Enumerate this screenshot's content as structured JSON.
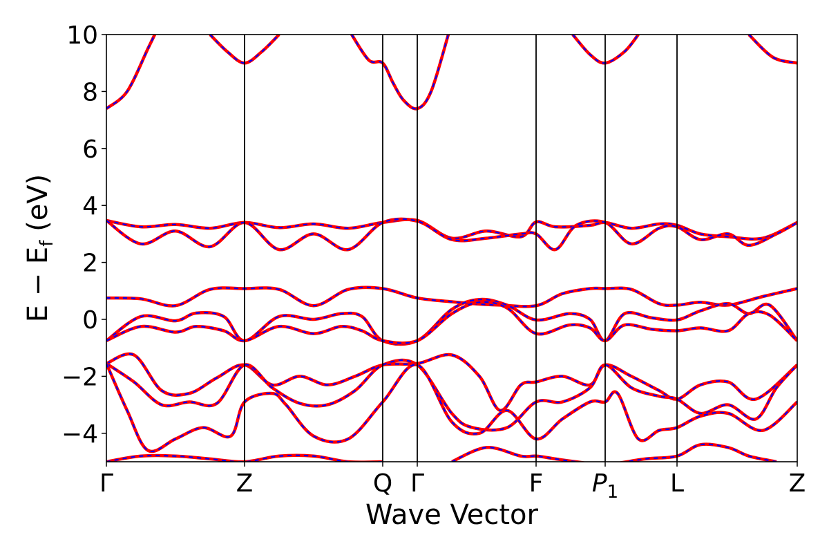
{
  "chart_data": {
    "type": "line",
    "title": "",
    "xlabel": "Wave Vector",
    "ylabel": "E − E_f (eV)",
    "ylabel_parts": {
      "main": "E − E",
      "sub": "f",
      "unit": " (eV)"
    },
    "ylim": [
      -5,
      10
    ],
    "yticks": [
      -4,
      -2,
      0,
      2,
      4,
      6,
      8,
      10
    ],
    "ytick_labels": [
      "−4",
      "−2",
      "0",
      "2",
      "4",
      "6",
      "8",
      "10"
    ],
    "grid": false,
    "legend": "none",
    "colors": {
      "solid": "#ff0000",
      "dashed": "#0000ff",
      "vline": "#000000"
    },
    "kpath": [
      {
        "label": "Γ",
        "k": 0.0
      },
      {
        "label": "Z",
        "k": 2.0
      },
      {
        "label": "Q",
        "k": 4.0
      },
      {
        "label": "Γ",
        "k": 4.5
      },
      {
        "label": "F",
        "k": 6.22
      },
      {
        "label": "P1",
        "k": 7.22,
        "italic_base": "P",
        "sub": "1"
      },
      {
        "label": "L",
        "k": 8.26
      },
      {
        "label": "Z",
        "k": 10.0
      }
    ],
    "band_style": "solid red overlaid with dashed blue (identical values)",
    "bands": [
      {
        "x": [
          0,
          0.3,
          0.6,
          0.7
        ],
        "y": [
          7.4,
          8.0,
          9.5,
          10.0
        ]
      },
      {
        "x": [
          1.5,
          1.75,
          2.0,
          2.25,
          2.5
        ],
        "y": [
          10.0,
          9.4,
          9.0,
          9.4,
          10.0
        ]
      },
      {
        "x": [
          3.55,
          3.8,
          4.0,
          4.15,
          4.3,
          4.5,
          4.7,
          4.95
        ],
        "y": [
          10.0,
          9.1,
          9.0,
          8.3,
          7.7,
          7.4,
          8.0,
          10.0
        ]
      },
      {
        "x": [
          6.75,
          7.0,
          7.22,
          7.5,
          7.7
        ],
        "y": [
          10.0,
          9.3,
          9.0,
          9.4,
          10.0
        ]
      },
      {
        "x": [
          9.3,
          9.65,
          10.0
        ],
        "y": [
          10.0,
          9.2,
          9.0
        ]
      },
      {
        "x": [
          0,
          0.5,
          1.0,
          1.5,
          2.0,
          2.5,
          3.0,
          3.5,
          4.0,
          4.5,
          5.0,
          5.5,
          6.0,
          6.22,
          6.5,
          7.0,
          7.22,
          7.6,
          8.0,
          8.26,
          8.6,
          9.0,
          9.5,
          10.0
        ],
        "y": [
          3.47,
          3.25,
          3.33,
          3.2,
          3.4,
          3.22,
          3.35,
          3.2,
          3.4,
          3.47,
          2.85,
          3.1,
          2.9,
          3.42,
          3.25,
          3.3,
          3.4,
          3.2,
          3.35,
          3.3,
          3.0,
          2.9,
          2.85,
          3.4
        ]
      },
      {
        "x": [
          0,
          0.5,
          1.0,
          1.5,
          2.0,
          2.5,
          3.0,
          3.5,
          4.0,
          4.5,
          5.0,
          5.5,
          6.0,
          6.22,
          6.5,
          6.8,
          7.22,
          7.6,
          8.0,
          8.26,
          8.6,
          9.0,
          9.3,
          9.7,
          10.0
        ],
        "y": [
          3.47,
          2.65,
          3.1,
          2.55,
          3.4,
          2.45,
          3.0,
          2.45,
          3.4,
          3.45,
          2.8,
          2.85,
          3.0,
          3.0,
          2.45,
          3.3,
          3.4,
          2.65,
          3.2,
          3.25,
          2.8,
          3.0,
          2.6,
          3.0,
          3.4
        ]
      },
      {
        "x": [
          0,
          0.5,
          1.0,
          1.5,
          2.0,
          2.5,
          3.0,
          3.5,
          4.0,
          4.5,
          5.0,
          5.3,
          5.7,
          6.22,
          6.6,
          7.0,
          7.22,
          7.6,
          8.0,
          8.26,
          8.6,
          9.0,
          9.5,
          10.0
        ],
        "y": [
          0.75,
          0.72,
          0.48,
          1.05,
          1.08,
          1.05,
          0.48,
          1.05,
          1.08,
          0.75,
          0.62,
          0.55,
          0.5,
          0.48,
          0.9,
          1.08,
          1.08,
          1.05,
          0.55,
          0.5,
          0.6,
          0.5,
          0.8,
          1.08
        ]
      },
      {
        "x": [
          0,
          0.5,
          1.0,
          1.3,
          1.7,
          2.0,
          2.5,
          3.0,
          3.4,
          3.7,
          4.0,
          4.5,
          5.0,
          5.4,
          5.8,
          6.22,
          6.7,
          7.0,
          7.22,
          7.5,
          7.9,
          8.26,
          8.6,
          9.0,
          9.3,
          9.6,
          10.0
        ],
        "y": [
          -0.75,
          0.1,
          -0.05,
          0.22,
          0.1,
          -0.75,
          0.1,
          0.0,
          0.2,
          0.1,
          -0.75,
          -0.75,
          0.35,
          0.7,
          0.5,
          -0.02,
          0.2,
          0.0,
          -0.75,
          0.2,
          0.05,
          -0.02,
          0.3,
          0.55,
          0.2,
          0.5,
          -0.75
        ]
      },
      {
        "x": [
          0,
          0.5,
          1.0,
          1.3,
          1.7,
          2.0,
          2.5,
          3.0,
          3.4,
          3.7,
          4.0,
          4.5,
          5.0,
          5.4,
          5.8,
          6.22,
          6.7,
          7.0,
          7.22,
          7.5,
          7.9,
          8.26,
          8.6,
          9.0,
          9.3,
          9.6,
          10.0
        ],
        "y": [
          -0.75,
          -0.25,
          -0.45,
          -0.25,
          -0.4,
          -0.75,
          -0.25,
          -0.5,
          -0.25,
          -0.4,
          -0.75,
          -0.75,
          0.2,
          0.6,
          0.4,
          -0.5,
          -0.2,
          -0.3,
          -0.75,
          -0.2,
          -0.35,
          -0.4,
          -0.3,
          -0.4,
          0.2,
          0.15,
          -0.75
        ]
      },
      {
        "x": [
          0,
          0.4,
          0.8,
          1.2,
          1.6,
          2.0,
          2.4,
          2.8,
          3.2,
          3.6,
          4.0,
          4.5,
          5.0,
          5.4,
          5.7,
          6.0,
          6.22,
          6.6,
          7.0,
          7.22,
          7.6,
          8.0,
          8.26,
          8.6,
          9.0,
          9.4,
          10.0
        ],
        "y": [
          -1.55,
          -1.25,
          -2.5,
          -2.6,
          -2.05,
          -1.6,
          -2.3,
          -2.0,
          -2.3,
          -2.0,
          -1.6,
          -1.55,
          -1.25,
          -2.0,
          -3.2,
          -2.3,
          -2.2,
          -2.0,
          -2.3,
          -1.6,
          -2.0,
          -2.5,
          -2.8,
          -2.3,
          -2.2,
          -2.8,
          -1.6
        ]
      },
      {
        "x": [
          0,
          0.4,
          0.8,
          1.2,
          1.6,
          2.0,
          2.4,
          2.8,
          3.2,
          3.6,
          4.0,
          4.5,
          5.0,
          5.3,
          5.8,
          6.22,
          6.6,
          7.0,
          7.22,
          7.6,
          8.0,
          8.26,
          8.6,
          9.0,
          9.4,
          9.7,
          10.0
        ],
        "y": [
          -1.55,
          -2.2,
          -3.0,
          -2.9,
          -2.95,
          -1.6,
          -2.4,
          -2.95,
          -3.0,
          -2.5,
          -1.6,
          -1.6,
          -3.3,
          -3.8,
          -3.8,
          -2.9,
          -2.9,
          -2.4,
          -1.6,
          -2.4,
          -2.7,
          -2.8,
          -3.3,
          -3.0,
          -3.5,
          -2.4,
          -1.6
        ]
      },
      {
        "x": [
          0,
          0.3,
          0.6,
          1.0,
          1.4,
          1.8,
          2.0,
          2.4,
          2.6,
          3.0,
          3.5,
          4.0,
          4.5,
          5.0,
          5.4,
          5.8,
          6.22,
          6.6,
          7.0,
          7.22,
          7.4,
          7.7,
          8.0,
          8.26,
          8.6,
          9.0,
          9.5,
          10.0
        ],
        "y": [
          -1.55,
          -3.2,
          -4.6,
          -4.2,
          -3.8,
          -4.1,
          -2.9,
          -2.6,
          -3.0,
          -4.1,
          -4.2,
          -2.9,
          -1.6,
          -3.6,
          -4.0,
          -3.2,
          -4.2,
          -3.5,
          -2.9,
          -2.9,
          -2.6,
          -4.2,
          -3.9,
          -3.8,
          -3.4,
          -3.3,
          -3.9,
          -2.9
        ]
      },
      {
        "x": [
          0,
          0.5,
          1.0,
          1.5,
          2.0,
          2.5,
          3.0,
          3.5,
          4.0
        ],
        "y": [
          -5.0,
          -4.8,
          -4.8,
          -4.9,
          -5.0,
          -4.8,
          -4.8,
          -5.0,
          -5.0
        ]
      },
      {
        "x": [
          5.0,
          5.5,
          6.0,
          6.22,
          6.5,
          6.8,
          7.22,
          7.8,
          8.26,
          8.6,
          9.0,
          9.3,
          9.7
        ],
        "y": [
          -5.0,
          -4.5,
          -4.8,
          -4.8,
          -4.9,
          -5.0,
          -5.1,
          -4.9,
          -4.8,
          -4.4,
          -4.5,
          -4.8,
          -5.0
        ]
      }
    ]
  }
}
